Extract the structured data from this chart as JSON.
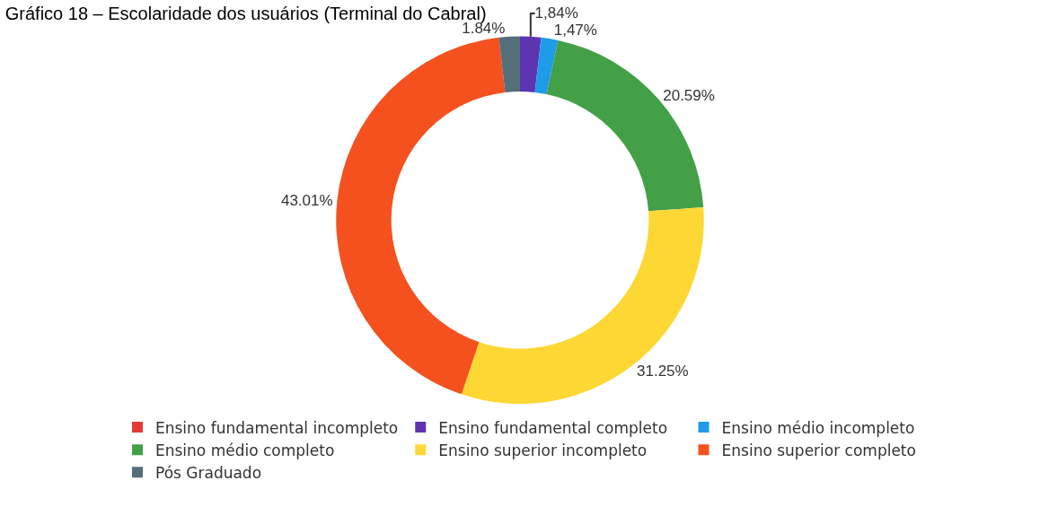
{
  "chart_data": {
    "type": "donut",
    "title": "Gráfico 18 – Escolaridade dos usuários (Terminal do Cabral)",
    "categories": [
      "Ensino fundamental incompleto",
      "Ensino fundamental completo",
      "Ensino médio incompleto",
      "Ensino médio completo",
      "Ensino superior incompleto",
      "Ensino superior completo",
      "Pós Graduado"
    ],
    "values": [
      0,
      1.84,
      1.47,
      20.59,
      31.25,
      43.01,
      1.84
    ],
    "value_labels": [
      null,
      "1,84%",
      "1,47%",
      "20.59%",
      "31.25%",
      "43.01%",
      "1.84%"
    ],
    "colors": [
      "#e53935",
      "#5e35b1",
      "#1e9be9",
      "#43a047",
      "#fdd835",
      "#f4511e",
      "#546e7a"
    ],
    "legend": "bottom"
  }
}
